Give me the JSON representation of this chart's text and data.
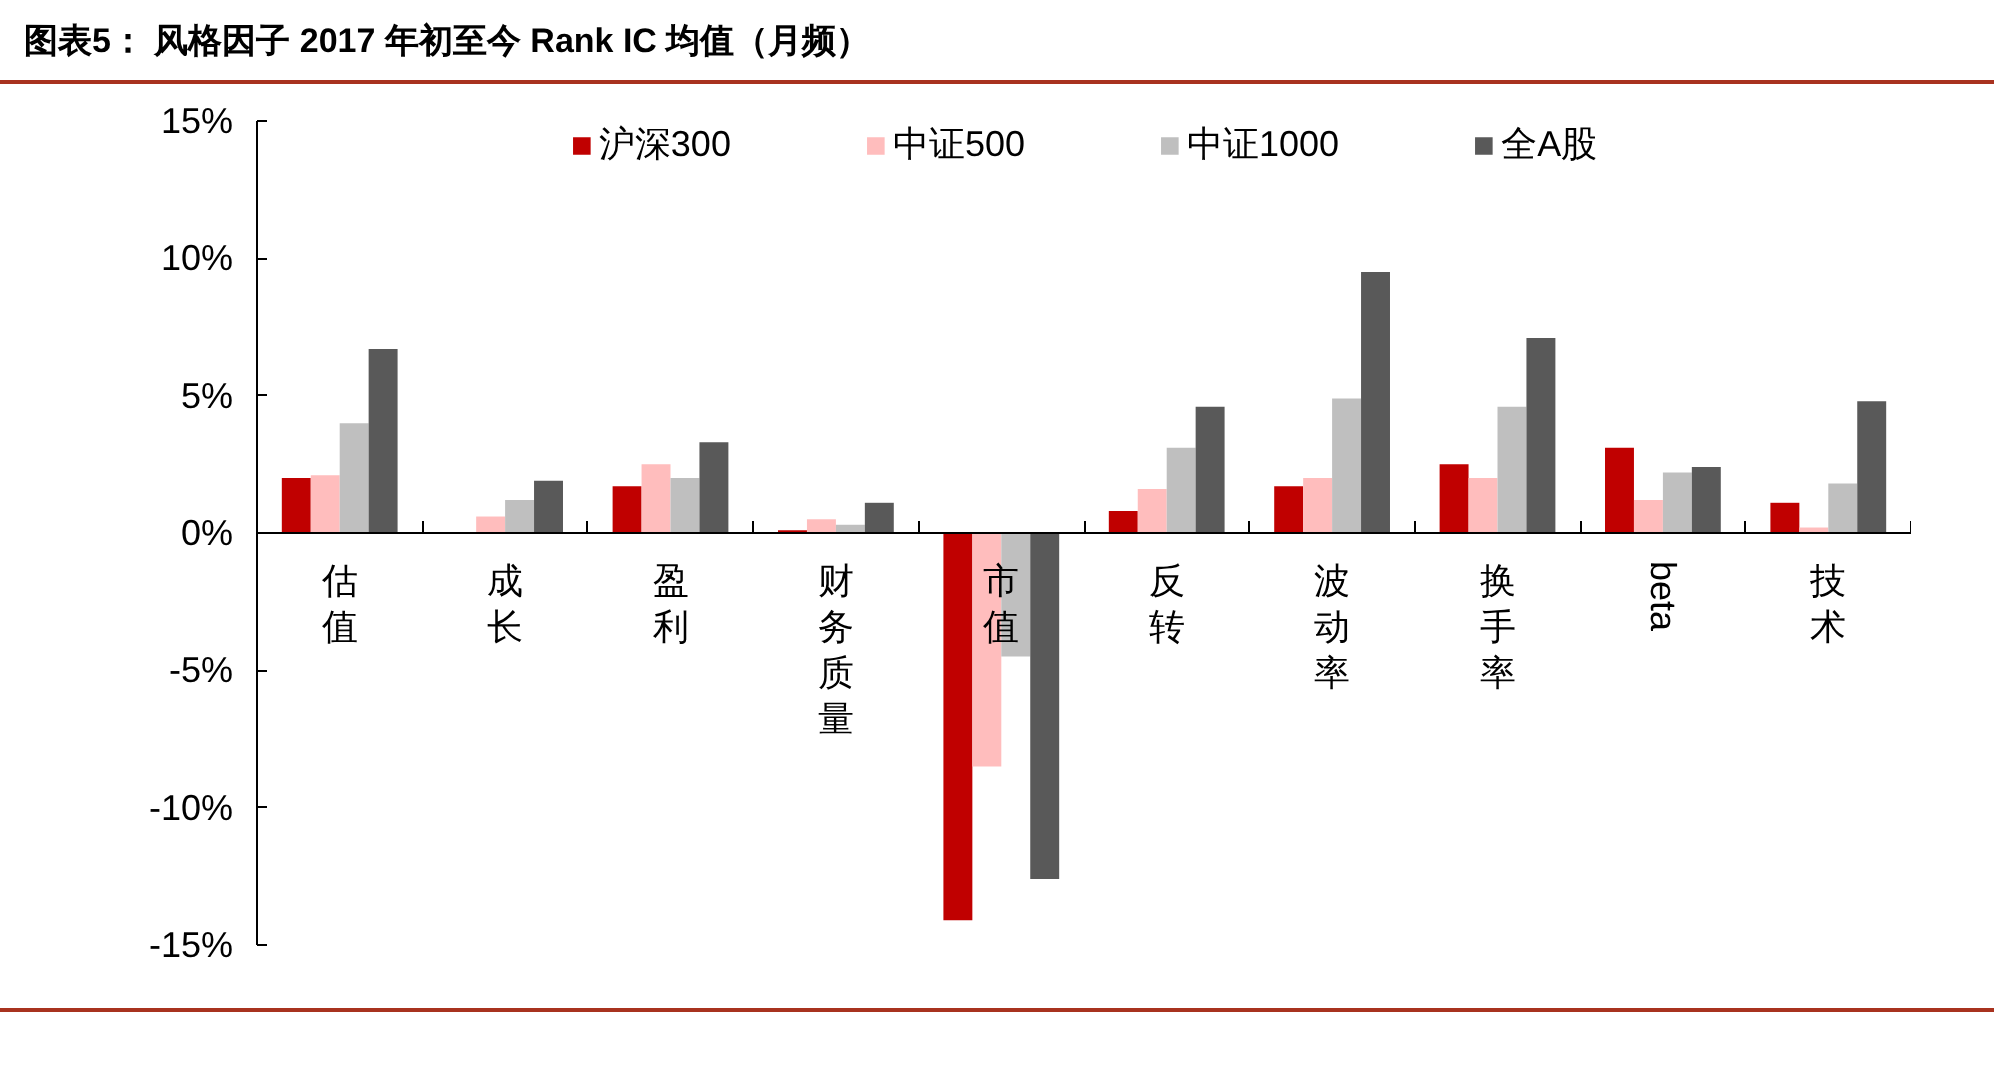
{
  "chart_data": {
    "type": "bar",
    "title": "图表5：  风格因子 2017 年初至今 Rank IC 均值（月频）",
    "categories": [
      "估值",
      "成长",
      "盈利",
      "财务质量",
      "市值",
      "反转",
      "波动率",
      "换手率",
      "beta",
      "技术"
    ],
    "series": [
      {
        "name": "沪深300",
        "color": "#c00000",
        "values": [
          2.0,
          0,
          1.7,
          0.1,
          -14.1,
          0.8,
          1.7,
          2.5,
          3.1,
          1.1
        ]
      },
      {
        "name": "中证500",
        "color": "#ffbdbd",
        "values": [
          2.1,
          0.6,
          2.5,
          0.5,
          -8.5,
          1.6,
          2.0,
          2.0,
          1.2,
          0.2
        ]
      },
      {
        "name": "中证1000",
        "color": "#bfbfbf",
        "values": [
          4.0,
          1.2,
          2.0,
          0.3,
          -4.5,
          3.1,
          4.9,
          4.6,
          2.2,
          1.8
        ]
      },
      {
        "name": "全A股",
        "color": "#595959",
        "values": [
          6.7,
          1.9,
          3.3,
          1.1,
          -12.6,
          4.6,
          9.5,
          7.1,
          2.4,
          4.8
        ]
      }
    ],
    "ylim": [
      -15,
      15
    ],
    "yticks": [
      {
        "value": -15,
        "label": "-15%"
      },
      {
        "value": -10,
        "label": "-10%"
      },
      {
        "value": -5,
        "label": "-5%"
      },
      {
        "value": 0,
        "label": "0%"
      },
      {
        "value": 5,
        "label": "5%"
      },
      {
        "value": 10,
        "label": "10%"
      },
      {
        "value": 15,
        "label": "15%"
      }
    ],
    "legend": "top"
  }
}
